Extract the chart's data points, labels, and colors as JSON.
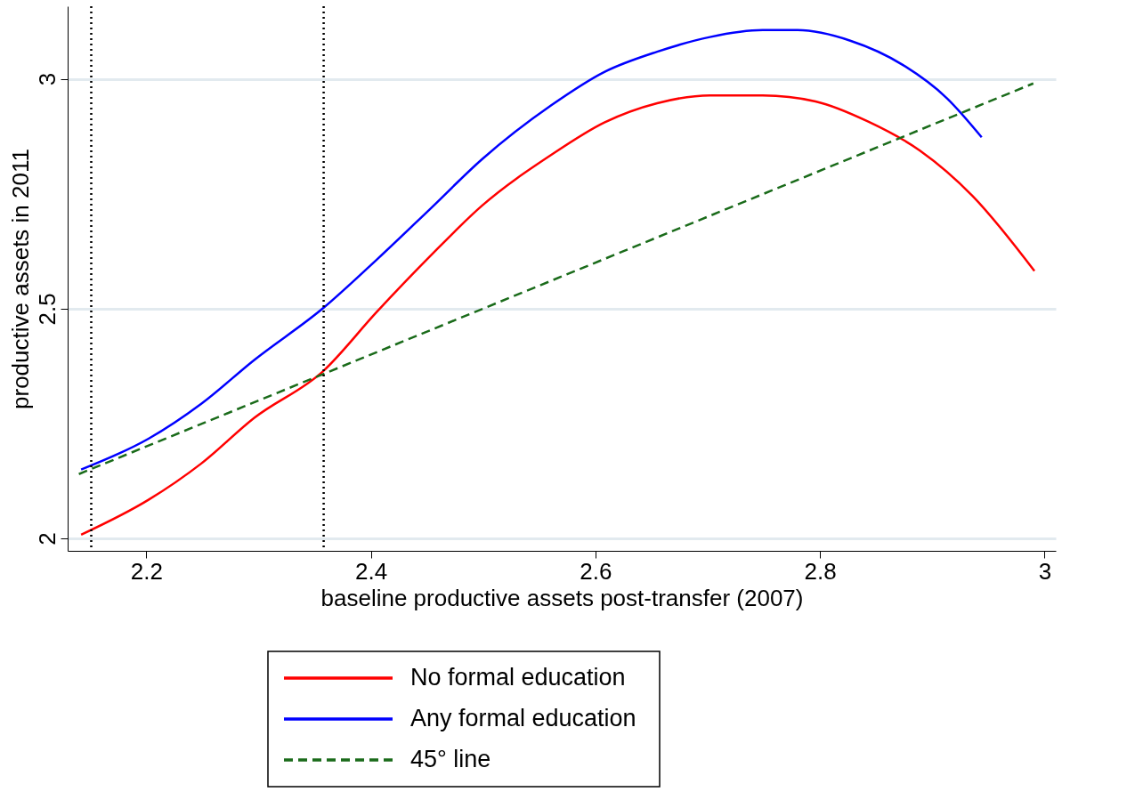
{
  "chart_data": {
    "type": "line",
    "xlabel": "baseline productive assets post-transfer (2007)",
    "ylabel": "productive assets in 2011",
    "xlim": [
      2.13,
      3.01
    ],
    "xticks": [
      2.2,
      2.4,
      2.6,
      2.8,
      3
    ],
    "ylim": [
      1.973,
      3.158
    ],
    "yticks": [
      2,
      2.5,
      3
    ],
    "grid": "y",
    "legend": "bottom",
    "line_style": "solid",
    "marker": "none",
    "series": [
      {
        "name": "No formal education",
        "color": "#ff0000",
        "x": [
          2.142,
          2.202,
          2.249,
          2.296,
          2.358,
          2.405,
          2.452,
          2.499,
          2.561,
          2.608,
          2.655,
          2.702,
          2.749,
          2.796,
          2.843,
          2.889,
          2.936,
          2.991
        ],
        "values": [
          2.008,
          2.084,
          2.163,
          2.262,
          2.365,
          2.492,
          2.612,
          2.724,
          2.835,
          2.905,
          2.947,
          2.964,
          2.964,
          2.951,
          2.907,
          2.844,
          2.745,
          2.582
        ]
      },
      {
        "name": "Any formal education",
        "color": "#0000ff",
        "x": [
          2.142,
          2.202,
          2.249,
          2.296,
          2.358,
          2.405,
          2.452,
          2.499,
          2.561,
          2.608,
          2.655,
          2.702,
          2.749,
          2.78,
          2.827,
          2.874,
          2.913,
          2.944
        ],
        "values": [
          2.15,
          2.217,
          2.293,
          2.388,
          2.502,
          2.606,
          2.715,
          2.825,
          2.943,
          3.015,
          3.059,
          3.091,
          3.106,
          3.106,
          3.083,
          3.03,
          2.958,
          2.873
        ]
      },
      {
        "name": "45° line",
        "color": "#1a6b1a",
        "line_style": "dashed",
        "x": [
          2.14,
          2.99
        ],
        "values": [
          2.14,
          2.99
        ]
      }
    ],
    "ref_lines": [
      {
        "axis": "x",
        "value": 2.151,
        "color": "#000000",
        "line_style": "dotted"
      },
      {
        "axis": "x",
        "value": 2.358,
        "color": "#000000",
        "line_style": "dotted"
      }
    ]
  }
}
